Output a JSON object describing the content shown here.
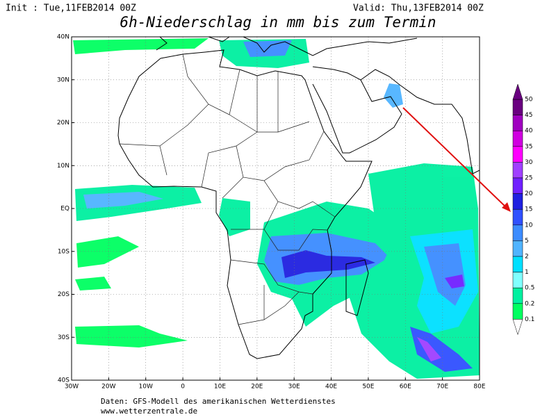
{
  "header": {
    "init": "Init : Tue,11FEB2014 00Z",
    "valid": "Valid: Thu,13FEB2014 00Z",
    "title": "6h-Niederschlag in mm bis zum Termin"
  },
  "map": {
    "lat_labels": [
      "40N",
      "30N",
      "20N",
      "10N",
      "EQ",
      "10S",
      "20S",
      "30S",
      "40S"
    ],
    "lon_labels": [
      "30W",
      "20W",
      "10W",
      "0",
      "10E",
      "20E",
      "30E",
      "40E",
      "50E",
      "60E",
      "70E",
      "80E"
    ]
  },
  "legend": {
    "levels": [
      "50",
      "45",
      "40",
      "35",
      "30",
      "25",
      "20",
      "15",
      "10",
      "5",
      "2",
      "1",
      "0.5",
      "0.2",
      "0.1"
    ],
    "colors": [
      "#6a0080",
      "#a000c0",
      "#d000e0",
      "#ff00ff",
      "#a040ff",
      "#7020ff",
      "#2020e0",
      "#3050ff",
      "#3c8cff",
      "#50b4ff",
      "#00e0ff",
      "#80ffff",
      "#00f0a0",
      "#00ff60"
    ]
  },
  "footer": {
    "source": "Daten: GFS-Modell des amerikanischen Wetterdienstes",
    "url": "www.wetterzentrale.de"
  }
}
